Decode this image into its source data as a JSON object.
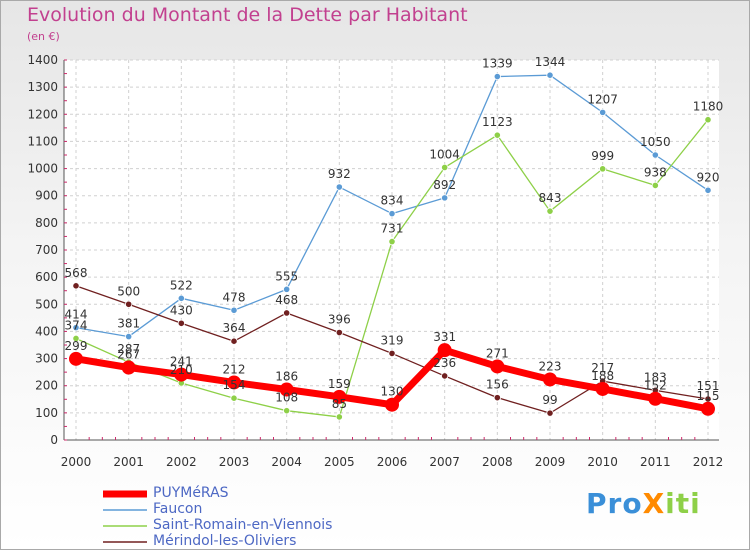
{
  "title": "Evolution du Montant de la Dette par Habitant",
  "unit": "(en €)",
  "logo": "ProXiti",
  "chart_data": {
    "type": "line",
    "title": "Evolution du Montant de la Dette par Habitant",
    "ylabel": "(en €)",
    "xlabel": "",
    "ylim": [
      0,
      1400
    ],
    "yticks": [
      "0",
      "100",
      "200",
      "300",
      "400",
      "500",
      "600",
      "700",
      "800",
      "900",
      "1000",
      "1100",
      "1200",
      "1300",
      "1400"
    ],
    "categories": [
      "2000",
      "2001",
      "2002",
      "2003",
      "2004",
      "2005",
      "2006",
      "2007",
      "2008",
      "2009",
      "2010",
      "2011",
      "2012"
    ],
    "series": [
      {
        "name": "PUYMéRAS",
        "color": "#ff0000",
        "values": [
          299,
          267,
          241,
          212,
          186,
          159,
          130,
          331,
          271,
          223,
          188,
          152,
          115
        ]
      },
      {
        "name": "Faucon",
        "color": "#5b9bd5",
        "values": [
          414,
          381,
          522,
          478,
          555,
          932,
          834,
          892,
          1339,
          1344,
          1207,
          1050,
          920
        ]
      },
      {
        "name": "Saint-Romain-en-Viennois",
        "color": "#8ed048",
        "values": [
          374,
          287,
          210,
          154,
          108,
          85,
          731,
          1004,
          1123,
          843,
          999,
          938,
          1180
        ]
      },
      {
        "name": "Mérindol-les-Oliviers",
        "color": "#702020",
        "values": [
          568,
          500,
          430,
          364,
          468,
          396,
          319,
          236,
          156,
          99,
          217,
          183,
          151
        ]
      }
    ]
  }
}
